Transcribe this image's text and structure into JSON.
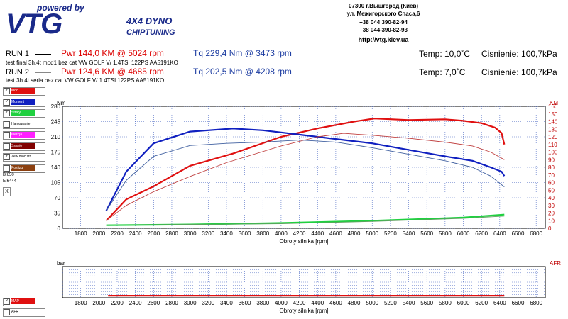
{
  "header": {
    "powered_by": "powered by",
    "brand": "VTG",
    "tagline1": "4X4 DYNO",
    "tagline2": "CHIPTUNING",
    "address": [
      "07300 г.Вышгород (Киев)",
      "ул. Межигорского Спаса,6",
      "+38 044 390-82-94",
      "+38 044 390-82-93",
      "http://vtg.kiev.ua"
    ]
  },
  "runs": [
    {
      "label": "RUN 1",
      "pwr": "Pwr  144,0 KM @ 5024 rpm",
      "tq": "Tq 229,4 Nm @ 3473 rpm",
      "desc": "test final 3h.4t  mod1  bez cat VW GOLF V/ 1.4TSI 122PS AA5191KO",
      "temp": "Temp: 10,0˚C",
      "pressure": "Cisnienie: 100,7kPa",
      "line_color": "#000000"
    },
    {
      "label": "RUN 2",
      "pwr": "Pwr  124,6 KM @ 4685 rpm",
      "tq": "Tq 202,5 Nm @ 4208 rpm",
      "desc": "test  3h 4t  seria bez cat VW GOLF V/ 1.4TSI 122PS AA5191KO",
      "temp": "Temp: 7,0˚C",
      "pressure": "Cisnienie: 100,7kPa",
      "line_color": "#888888"
    }
  ],
  "legend": [
    {
      "label": "Moc",
      "color": "#e01010",
      "checked": true
    },
    {
      "label": "Moment",
      "color": "#1020c0",
      "checked": true
    },
    {
      "label": "Straty",
      "color": "#20d040",
      "checked": true
    },
    {
      "label": "Hamowanie",
      "color": "#ffffff",
      "checked": false
    },
    {
      "label": "Inercja",
      "color": "#ff20ff",
      "checked": false
    },
    {
      "label": "Ssanie",
      "color": "#800000",
      "checked": false
    },
    {
      "label": "Zew moc str",
      "color": "#ffffff",
      "checked": true
    },
    {
      "label": "Poslizg",
      "color": "#8b4010",
      "checked": false
    }
  ],
  "side_info": [
    "B:650",
    "E:6444"
  ],
  "close_label": "X",
  "legend2": [
    {
      "label": "MAP",
      "color": "#e01010",
      "checked": true
    },
    {
      "label": "AFR",
      "color": "#ffffff",
      "checked": false
    }
  ],
  "chart_data": [
    {
      "type": "line",
      "title": "",
      "xlabel": "Obroty silnika [rpm]",
      "ylabel_left": "Nm",
      "ylabel_right": "KM",
      "xlim": [
        1600,
        6900
      ],
      "ylim_left": [
        0,
        280
      ],
      "ylim_right": [
        0,
        160
      ],
      "x_ticks": [
        1800,
        2000,
        2200,
        2400,
        2600,
        2800,
        3000,
        3200,
        3400,
        3600,
        3800,
        4000,
        4200,
        4400,
        4600,
        4800,
        5000,
        5200,
        5400,
        5600,
        5800,
        6000,
        6200,
        6400,
        6600,
        6800
      ],
      "y_ticks_left": [
        0,
        35,
        70,
        105,
        140,
        175,
        210,
        245,
        280
      ],
      "y_ticks_right": [
        0,
        10,
        20,
        30,
        40,
        50,
        60,
        70,
        80,
        90,
        100,
        110,
        120,
        130,
        140,
        150,
        160
      ],
      "grid": true,
      "series": [
        {
          "name": "Moc",
          "run": "RUN 1",
          "axis": "right",
          "color": "#e01010",
          "x": [
            2080,
            2300,
            2600,
            3000,
            3473,
            4000,
            4400,
            4800,
            5024,
            5400,
            5800,
            6000,
            6200,
            6350,
            6420,
            6450
          ],
          "values": [
            10,
            38,
            55,
            82,
            98,
            120,
            131,
            140,
            144,
            142,
            143,
            141,
            138,
            132,
            125,
            110
          ]
        },
        {
          "name": "Moment",
          "run": "RUN 1",
          "axis": "left",
          "color": "#1020c0",
          "x": [
            2080,
            2300,
            2600,
            3000,
            3473,
            3800,
            4200,
            4600,
            5000,
            5400,
            5800,
            6100,
            6300,
            6420,
            6450
          ],
          "values": [
            40,
            130,
            195,
            222,
            229,
            225,
            215,
            205,
            195,
            180,
            165,
            155,
            140,
            130,
            120
          ]
        },
        {
          "name": "Straty",
          "run": "RUN 1",
          "axis": "right",
          "color": "#20d040",
          "x": [
            2080,
            3000,
            4000,
            5000,
            6000,
            6450
          ],
          "values": [
            4,
            5,
            7,
            10,
            14,
            18
          ]
        },
        {
          "name": "Moc",
          "run": "RUN 2",
          "axis": "right",
          "color": "#c04040",
          "x": [
            2080,
            2300,
            2600,
            3000,
            3400,
            4000,
            4400,
            4685,
            5000,
            5400,
            5800,
            6100,
            6300,
            6450
          ],
          "values": [
            10,
            30,
            48,
            68,
            86,
            108,
            120,
            124.6,
            122,
            118,
            113,
            108,
            100,
            90
          ]
        },
        {
          "name": "Moment",
          "run": "RUN 2",
          "axis": "left",
          "color": "#4060a0",
          "x": [
            2080,
            2300,
            2600,
            3000,
            3400,
            3800,
            4208,
            4600,
            5000,
            5400,
            5800,
            6100,
            6300,
            6450
          ],
          "values": [
            40,
            110,
            165,
            190,
            195,
            198,
            202.5,
            198,
            185,
            170,
            155,
            140,
            120,
            95
          ]
        },
        {
          "name": "Straty",
          "run": "RUN 2",
          "axis": "right",
          "color": "#60a060",
          "x": [
            2080,
            3000,
            4000,
            5000,
            6000,
            6450
          ],
          "values": [
            4,
            5,
            6,
            9,
            13,
            16
          ]
        }
      ]
    },
    {
      "type": "line",
      "title": "",
      "xlabel": "Obroty silnika [rpm]",
      "ylabel_left": "bar",
      "ylabel_right": "AFR",
      "xlim": [
        1600,
        6900
      ],
      "ylim_left": [
        0,
        3
      ],
      "ylim_right": [
        0,
        3
      ],
      "x_ticks": [
        1800,
        2000,
        2200,
        2400,
        2600,
        2800,
        3000,
        3200,
        3400,
        3600,
        3800,
        4000,
        4200,
        4400,
        4600,
        4800,
        5000,
        5200,
        5400,
        5600,
        5800,
        6000,
        6200,
        6400,
        6600,
        6800
      ],
      "grid": true,
      "series": [
        {
          "name": "MAP",
          "axis": "left",
          "color": "#e01010",
          "x": [
            2100,
            6450
          ],
          "values": [
            0.2,
            0.2
          ]
        }
      ]
    }
  ]
}
